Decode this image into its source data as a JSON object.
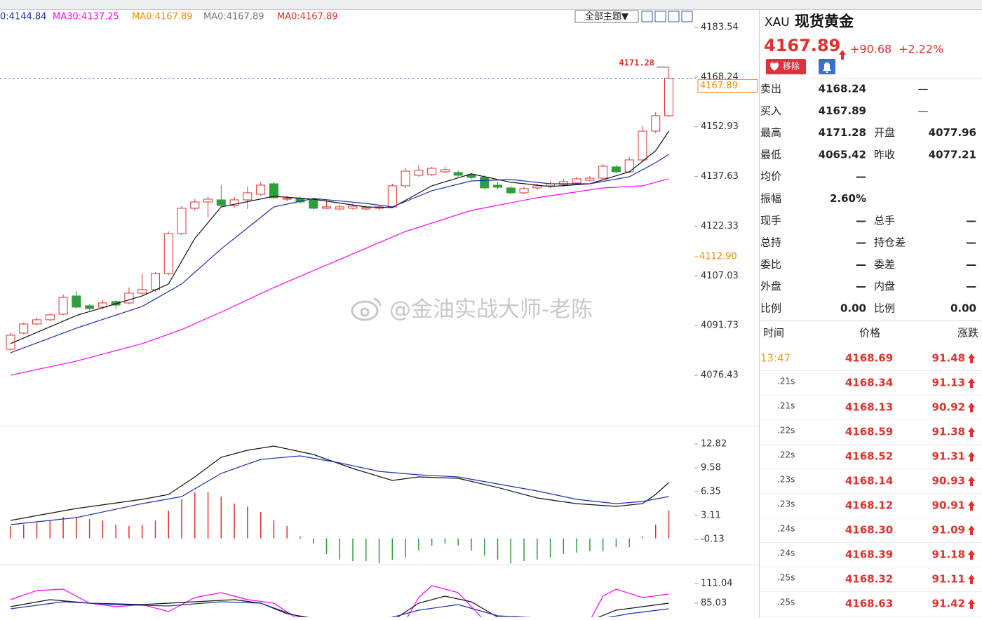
{
  "toolbar": {
    "theme_button": "全部主题▼"
  },
  "chart_data": [
    {
      "type": "candlestick",
      "legend": [
        {
          "label": "0:4144.84",
          "color": "#1a2fb0"
        },
        {
          "label": "MA30:4137.25",
          "color": "#ff00ff"
        },
        {
          "label": "MA0:4167.89",
          "color": "#f08c00"
        },
        {
          "label": "MA0:4167.89",
          "color": "#777777"
        },
        {
          "label": "MA0:4167.89",
          "color": "#e0312c"
        }
      ],
      "ylim": [
        4060.89,
        4188.72
      ],
      "yticks": [
        4183.54,
        4168.24,
        4152.93,
        4137.63,
        4122.33,
        4107.03,
        4091.73,
        4076.43
      ],
      "up_color": "#e0312c",
      "down_color": "#2e9e3a",
      "open": [
        4084.44,
        4089.41,
        4092.21,
        4093.51,
        4095.24,
        4100.85,
        4097.83,
        4097.4,
        4099.12,
        4098.69,
        4101.71,
        4102.79,
        4107.76,
        4120.07,
        4127.84,
        4129.78,
        4130.43,
        4128.7,
        4130.43,
        4132.16,
        4135.39,
        4130.64,
        4130.86,
        4130.43,
        4127.84,
        4127.62,
        4127.84,
        4127.62,
        4127.84,
        4128.27,
        4134.75,
        4137.99,
        4138.2,
        4139.06,
        4138.85,
        4138.2,
        4137.34,
        4134.96,
        4134.1,
        4132.59,
        4134.1,
        4134.75,
        4135.18,
        4135.61,
        4136.47,
        4137.12,
        4140.58,
        4139.06,
        4142.73,
        4151.59,
        4156.34
      ],
      "close": [
        4088.76,
        4092.21,
        4093.51,
        4095.02,
        4100.42,
        4097.4,
        4096.96,
        4098.69,
        4098.04,
        4101.71,
        4102.79,
        4107.76,
        4120.07,
        4127.84,
        4129.78,
        4130.64,
        4128.7,
        4130.43,
        4132.59,
        4134.96,
        4131.08,
        4130.86,
        4129.78,
        4127.84,
        4128.27,
        4128.27,
        4128.49,
        4128.05,
        4128.27,
        4134.75,
        4139.28,
        4139.5,
        4140.14,
        4139.71,
        4137.99,
        4137.34,
        4134.1,
        4134.31,
        4132.59,
        4133.88,
        4134.75,
        4135.39,
        4136.04,
        4136.91,
        4137.12,
        4140.79,
        4139.06,
        4142.73,
        4151.59,
        4156.34,
        4167.89
      ],
      "high": [
        4089.62,
        4092.65,
        4094.16,
        4095.45,
        4101.28,
        4102.36,
        4098.26,
        4099.55,
        4099.55,
        4103.44,
        4107.76,
        4108.19,
        4120.71,
        4128.49,
        4130.64,
        4131.51,
        4134.96,
        4131.29,
        4134.53,
        4135.83,
        4136.04,
        4131.72,
        4131.51,
        4130.86,
        4130.43,
        4128.92,
        4129.35,
        4128.7,
        4128.92,
        4135.39,
        4140.14,
        4141.01,
        4140.58,
        4140.58,
        4139.5,
        4138.85,
        4137.99,
        4136.04,
        4134.75,
        4134.53,
        4135.39,
        4136.26,
        4136.91,
        4137.55,
        4137.77,
        4141.44,
        4141.22,
        4143.6,
        4153.1,
        4157.42,
        4171.28
      ],
      "low": [
        4084.01,
        4088.98,
        4091.78,
        4093.08,
        4094.81,
        4096.96,
        4096.32,
        4096.75,
        4096.96,
        4098.26,
        4101.28,
        4102.15,
        4107.33,
        4119.63,
        4127.19,
        4125.03,
        4128.05,
        4128.05,
        4127.62,
        4131.72,
        4130.64,
        4130.0,
        4129.35,
        4127.41,
        4127.62,
        4127.19,
        4127.41,
        4127.19,
        4127.19,
        4127.84,
        4134.1,
        4137.55,
        4137.77,
        4138.63,
        4137.55,
        4136.69,
        4133.67,
        4133.67,
        4132.16,
        4132.16,
        4133.67,
        4134.1,
        4134.53,
        4135.18,
        4136.04,
        4136.69,
        4138.63,
        4138.63,
        4142.3,
        4150.94,
        4155.9
      ],
      "overlays": [
        {
          "color": "#111111",
          "x": [
            0,
            5,
            10,
            12,
            14,
            16,
            20,
            23,
            27,
            29,
            32,
            35,
            38,
            41,
            44,
            47,
            49,
            50
          ],
          "values": [
            4086.17,
            4094.81,
            4100.85,
            4104.52,
            4118.55,
            4128.27,
            4131.51,
            4130.64,
            4128.27,
            4128.05,
            4134.75,
            4138.42,
            4135.83,
            4134.53,
            4135.39,
            4139.06,
            4145.54,
            4151.59
          ]
        },
        {
          "color": "#1a2fb0",
          "x": [
            0,
            5,
            10,
            13,
            16,
            20,
            23,
            27,
            29,
            32,
            35,
            38,
            41,
            44,
            47,
            49,
            50
          ],
          "values": [
            4083.36,
            4090.92,
            4097.61,
            4104.52,
            4115.32,
            4128.27,
            4130.86,
            4129.35,
            4128.27,
            4133.24,
            4136.26,
            4136.69,
            4135.39,
            4135.39,
            4137.55,
            4141.87,
            4144.46
          ]
        },
        {
          "color": "#ff00ff",
          "x": [
            0,
            5,
            10,
            13,
            16,
            20,
            25,
            30,
            35,
            40,
            45,
            48,
            50
          ],
          "values": [
            4076.45,
            4080.77,
            4086.17,
            4090.49,
            4095.88,
            4103.44,
            4112.08,
            4120.71,
            4127.19,
            4131.08,
            4134.1,
            4134.75,
            4136.91
          ]
        }
      ],
      "high_mark": 4171.28,
      "last_price": 4167.89,
      "marker": {
        "value": 4112.9,
        "label": "4112.90"
      },
      "watermark": "@金油实战大师-老陈"
    },
    {
      "type": "macd",
      "ylim": [
        -3.56,
        15.01
      ],
      "yticks": [
        12.82,
        9.58,
        6.35,
        3.11,
        -0.13
      ],
      "up_color": "#e0312c",
      "down_color": "#2e9e3a",
      "histogram": [
        1.68,
        1.87,
        2.15,
        2.44,
        2.91,
        2.82,
        2.63,
        2.44,
        1.87,
        1.68,
        1.87,
        2.44,
        3.77,
        5.3,
        6.25,
        6.25,
        5.68,
        4.72,
        4.34,
        3.58,
        2.44,
        1.68,
        0.25,
        -0.7,
        -2.13,
        -2.9,
        -3.09,
        -3.09,
        -3.4,
        -2.9,
        -2.61,
        -1.66,
        -0.99,
        -0.7,
        -0.99,
        -1.66,
        -2.32,
        -2.9,
        -3.4,
        -3.09,
        -2.9,
        -2.61,
        -2.13,
        -1.94,
        -1.75,
        -1.75,
        -1.18,
        -1.18,
        0.25,
        1.87,
        3.77
      ],
      "overlays": [
        {
          "color": "#111111",
          "x": [
            0,
            5,
            10,
            12,
            14,
            16,
            18,
            20,
            23,
            26,
            29,
            31,
            34,
            37,
            40,
            43,
            46,
            48,
            49,
            50
          ],
          "values": [
            2.44,
            4.06,
            5.3,
            5.96,
            8.34,
            11.01,
            11.96,
            12.53,
            11.39,
            9.49,
            7.87,
            8.34,
            8.15,
            6.91,
            5.49,
            4.72,
            4.34,
            4.72,
            5.96,
            7.58
          ]
        },
        {
          "color": "#1a2fb0",
          "x": [
            0,
            5,
            10,
            13,
            16,
            19,
            22,
            25,
            28,
            31,
            34,
            37,
            40,
            43,
            46,
            48,
            50
          ],
          "values": [
            1.87,
            2.82,
            4.72,
            5.68,
            8.82,
            10.72,
            11.2,
            10.25,
            9.1,
            8.63,
            8.34,
            7.39,
            6.44,
            5.3,
            4.72,
            5.01,
            5.68
          ]
        }
      ]
    },
    {
      "type": "line",
      "ylim": [
        66.45,
        133.3
      ],
      "yticks": [
        111.04,
        85.03
      ],
      "overlays": [
        {
          "color": "#ff00ff",
          "x": [
            0,
            2,
            4,
            6,
            8,
            10,
            12,
            14,
            16,
            18,
            20,
            22,
            30,
            31,
            32,
            34,
            36,
            44,
            45,
            46,
            48,
            50
          ],
          "values": [
            89.67,
            101.75,
            103.61,
            85.03,
            80.39,
            83.17,
            73.88,
            92.46,
            98.96,
            89.67,
            85.03,
            61.81,
            61.81,
            92.46,
            108.25,
            98.96,
            61.81,
            61.81,
            94.32,
            103.61,
            92.46,
            97.11
          ]
        },
        {
          "color": "#111111",
          "x": [
            0,
            3,
            6,
            10,
            14,
            17,
            19,
            21,
            24,
            29,
            31,
            33,
            35,
            37,
            44,
            46,
            48,
            50
          ],
          "values": [
            80.39,
            89.67,
            85.03,
            83.17,
            86.89,
            89.67,
            85.03,
            71.1,
            61.81,
            61.81,
            85.03,
            94.32,
            86.89,
            66.45,
            61.81,
            75.74,
            80.39,
            85.03
          ]
        },
        {
          "color": "#1a2fb0",
          "x": [
            0,
            4,
            8,
            12,
            16,
            19,
            22,
            28,
            31,
            34,
            37,
            44,
            47,
            50
          ],
          "values": [
            77.6,
            86.89,
            83.17,
            81.31,
            86.89,
            85.03,
            66.45,
            61.81,
            75.74,
            83.17,
            68.31,
            61.81,
            71.1,
            77.6
          ]
        }
      ]
    }
  ],
  "quote": {
    "symbol": "XAU",
    "name": "现货黄金",
    "price": "4167.89",
    "change": "+90.68",
    "change_pct": "+2.22%",
    "remove_button": "移除",
    "rows": [
      {
        "label": "卖出",
        "value": "4168.24",
        "value_color": "#e0312c",
        "extra": "—"
      },
      {
        "label": "买入",
        "value": "4167.89",
        "value_color": "#e0312c",
        "extra": "—"
      },
      {
        "label": "最高",
        "value": "4171.28",
        "value_color": "#e0312c",
        "label2": "开盘",
        "value2": "4077.96",
        "value2_color": "#e0312c"
      },
      {
        "label": "最低",
        "value": "4065.42",
        "value_color": "#0a9a2a",
        "label2": "昨收",
        "value2": "4077.21",
        "value2_color": "#222222"
      },
      {
        "label": "均价",
        "value": "—",
        "value_color": "#222222"
      },
      {
        "label": "振幅",
        "value": "2.60%",
        "value_color": "#222222"
      },
      {
        "label": "现手",
        "value": "—",
        "value_color": "#222222",
        "label2": "总手",
        "value2": "—",
        "value2_color": "#222222"
      },
      {
        "label": "总持",
        "value": "—",
        "value_color": "#222222",
        "label2": "持仓差",
        "value2": "—",
        "value2_color": "#222222"
      },
      {
        "label": "委比",
        "value": "—",
        "value_color": "#222222",
        "label2": "委差",
        "value2": "—",
        "value2_color": "#222222"
      },
      {
        "label": "外盘",
        "value": "—",
        "value_color": "#e0312c",
        "label2": "内盘",
        "value2": "—",
        "value2_color": "#0a9a2a"
      },
      {
        "label": "比例",
        "value": "0.00",
        "value_color": "#222222",
        "label2": "比例",
        "value2": "0.00",
        "value2_color": "#222222"
      }
    ]
  },
  "trades": {
    "columns": [
      "时间",
      "价格",
      "涨跌"
    ],
    "rows": [
      [
        "13:47",
        "4168.69",
        "91.48"
      ],
      [
        ".21s",
        "4168.34",
        "91.13"
      ],
      [
        ".21s",
        "4168.13",
        "90.92"
      ],
      [
        ".22s",
        "4168.59",
        "91.38"
      ],
      [
        ".22s",
        "4168.52",
        "91.31"
      ],
      [
        ".23s",
        "4168.14",
        "90.93"
      ],
      [
        ".23s",
        "4168.12",
        "90.91"
      ],
      [
        ".24s",
        "4168.30",
        "91.09"
      ],
      [
        ".24s",
        "4168.39",
        "91.18"
      ],
      [
        ".25s",
        "4168.32",
        "91.11"
      ],
      [
        ".25s",
        "4168.63",
        "91.42"
      ]
    ]
  }
}
